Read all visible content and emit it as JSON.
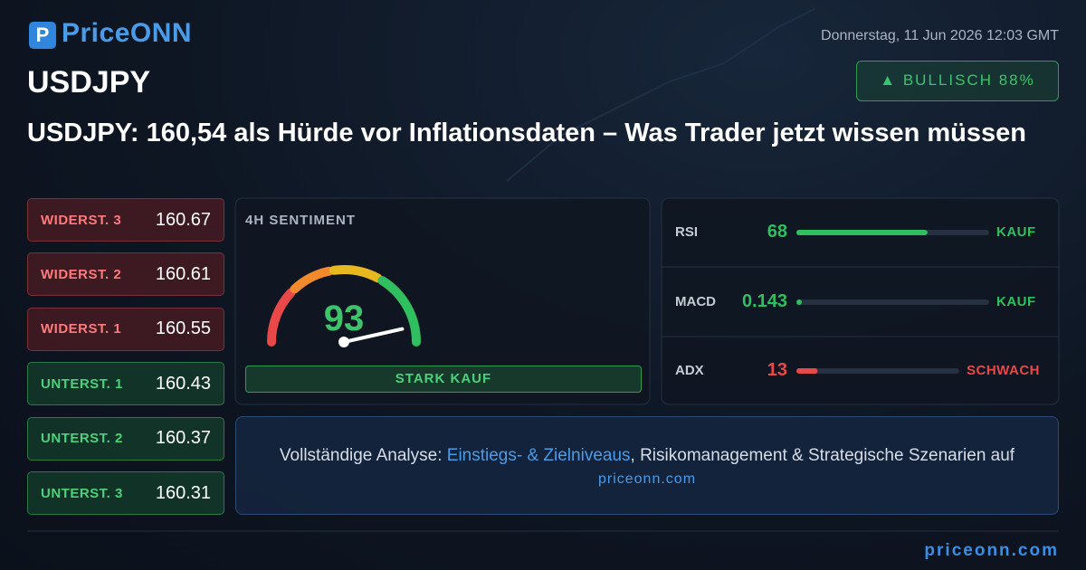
{
  "header": {
    "logo": "PriceONN",
    "date": "Donnerstag, 11 Jun 2026 12:03 GMT",
    "symbol": "USDJPY",
    "badge": "▲ BULLISCH 88%",
    "headline": "USDJPY: 160,54 als Hürde vor Inflationsdaten – Was Trader jetzt wissen müssen"
  },
  "resistances": [
    {
      "label": "WIDERST. 3",
      "value": 160.67
    },
    {
      "label": "WIDERST. 2",
      "value": 160.61
    },
    {
      "label": "WIDERST. 1",
      "value": 160.55
    }
  ],
  "supports": [
    {
      "label": "UNTERST. 1",
      "value": 160.43
    },
    {
      "label": "UNTERST. 2",
      "value": 160.37
    },
    {
      "label": "UNTERST. 3",
      "value": 160.31
    }
  ],
  "sentiment": {
    "title": "4H SENTIMENT",
    "value": 93,
    "signal": "STARK KAUF"
  },
  "indicators": [
    {
      "name": "RSI",
      "value": 68,
      "signal": "KAUF",
      "color": "#2fbf5f"
    },
    {
      "name": "MACD",
      "value": 0.143,
      "signal": "KAUF",
      "color": "#2fbf5f"
    },
    {
      "name": "ADX",
      "value": 13,
      "signal": "SCHWACH",
      "color": "#e84848"
    }
  ],
  "cta": {
    "text1": "Vollständige Analyse:",
    "link1": "Einstiegs- & Zielniveaus",
    "text2": ", Risikomanagement & Strategische Szenarien auf",
    "link2": "priceonn.com"
  },
  "footer": {
    "url": "priceonn.com"
  }
}
